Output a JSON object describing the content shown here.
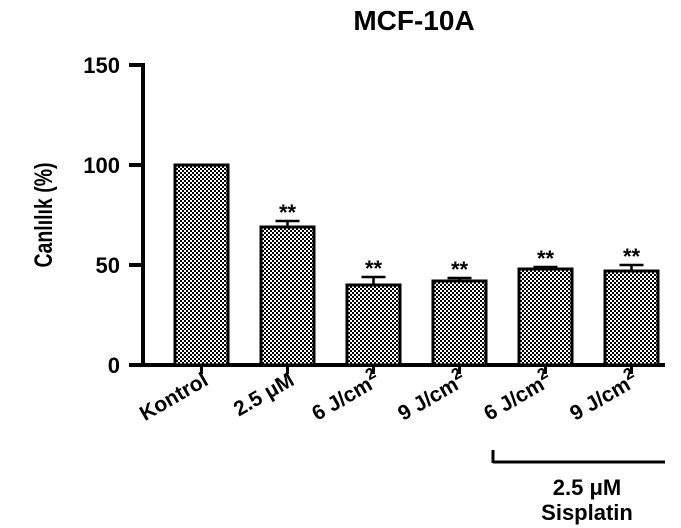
{
  "chart_data": {
    "type": "bar",
    "title": "MCF-10A",
    "ylabel": "Canlılık (%)",
    "xlabel": "",
    "ylim": [
      0,
      150
    ],
    "yticks": [
      "0",
      "50",
      "100",
      "150"
    ],
    "categories": [
      "Kontrol",
      "2.5 μM",
      "6 J/cm2",
      "9 J/cm2",
      "6 J/cm2",
      "9 J/cm2"
    ],
    "values": [
      100,
      69,
      40,
      42,
      48,
      47
    ],
    "errors": [
      0,
      3,
      4,
      1.5,
      1,
      3
    ],
    "significance": [
      "",
      "**",
      "**",
      "**",
      "**",
      "**"
    ],
    "group_label": [
      "2.5 μM",
      "Sisplatin"
    ],
    "bar_pattern": "checkered",
    "grid": false
  }
}
